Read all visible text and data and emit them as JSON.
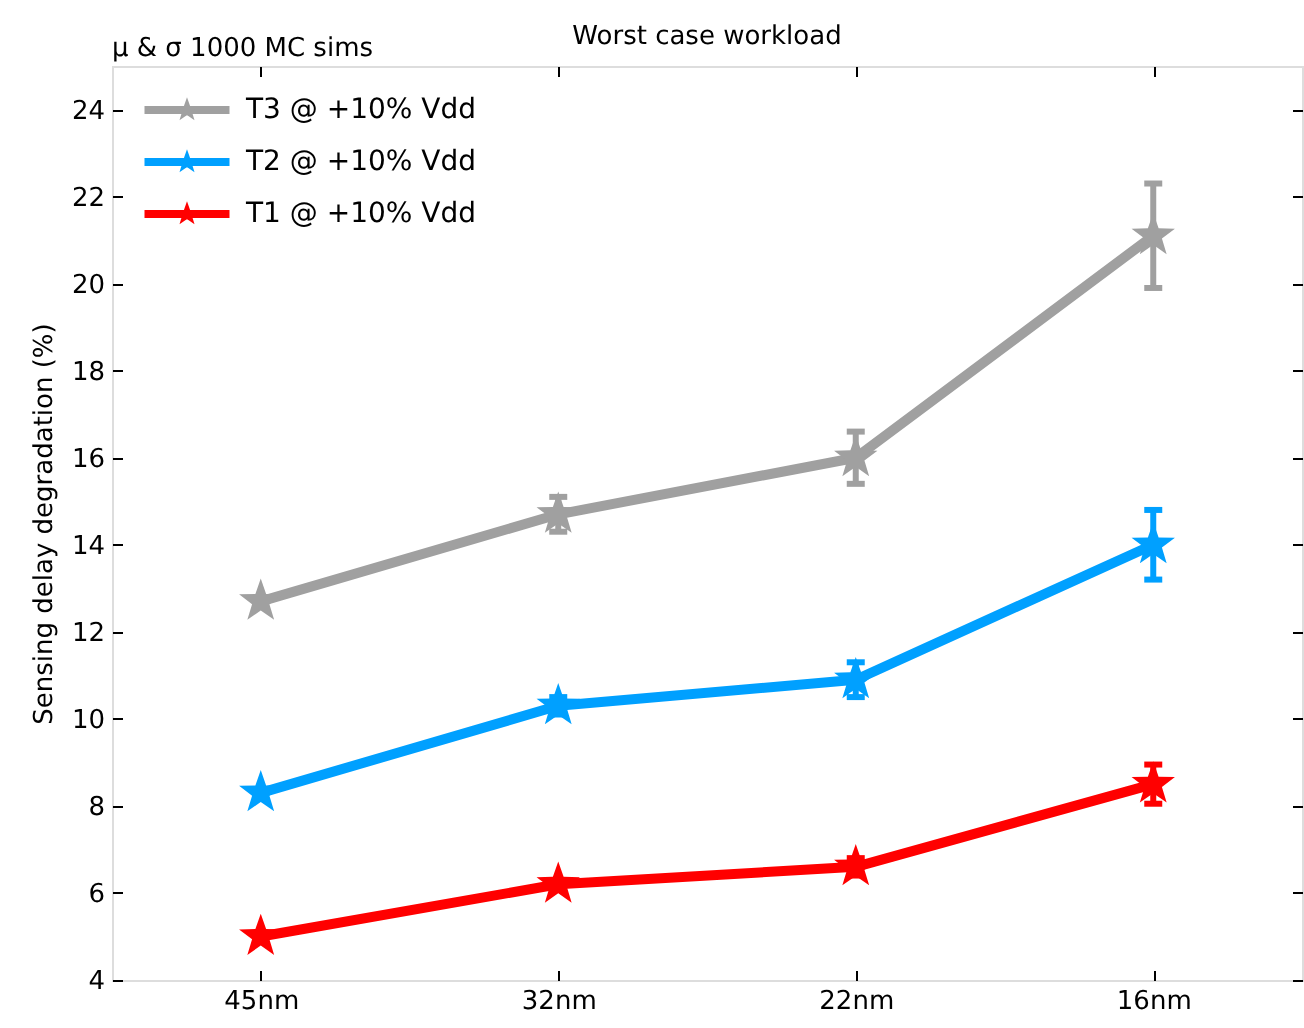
{
  "chart_data": {
    "type": "line",
    "title": "Worst case workload",
    "ylabel": "Sensing delay degradation (%)",
    "annotations": [
      "μ & σ 1000 MC sims"
    ],
    "categories": [
      "45nm",
      "32nm",
      "22nm",
      "16nm"
    ],
    "series": [
      {
        "name": "T3 @ +10% Vdd",
        "color": "#a0a0a0",
        "values": [
          12.7,
          14.7,
          16.0,
          21.1
        ],
        "errors": [
          null,
          0.4,
          0.6,
          1.2
        ]
      },
      {
        "name": "T2 @ +10% Vdd",
        "color": "#00a0ff",
        "values": [
          8.3,
          10.3,
          10.9,
          14.0
        ],
        "errors": [
          null,
          0.2,
          0.4,
          0.8
        ]
      },
      {
        "name": "T1 @ +10% Vdd",
        "color": "#ff0000",
        "values": [
          5.0,
          6.2,
          6.6,
          8.5
        ],
        "errors": [
          null,
          null,
          0.2,
          0.45
        ]
      }
    ],
    "ylim": [
      4,
      25
    ],
    "yticks": [
      4,
      6,
      8,
      10,
      12,
      14,
      16,
      18,
      20,
      22,
      24
    ],
    "grid": false,
    "legend": "top left",
    "marker": "star",
    "line_style": "solid"
  }
}
